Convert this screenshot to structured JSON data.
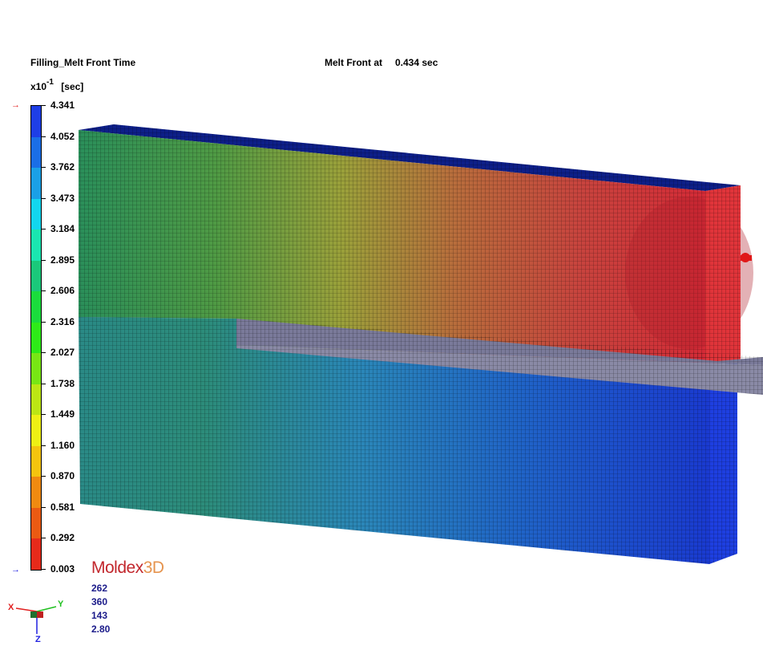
{
  "header": {
    "result_title": "Filling_Melt Front Time",
    "status_label": "Melt Front at",
    "status_value": "0.434 sec",
    "scale": "x10",
    "exponent": "-1",
    "unit": "[sec]"
  },
  "legend": {
    "ticks": [
      "4.341",
      "4.052",
      "3.762",
      "3.473",
      "3.184",
      "2.895",
      "2.606",
      "2.316",
      "2.027",
      "1.738",
      "1.449",
      "1.160",
      "0.870",
      "0.581",
      "0.292",
      "0.003"
    ],
    "colors": [
      "#1e3ee6",
      "#1a6ee6",
      "#1aa0e6",
      "#12d6ee",
      "#1ae6b0",
      "#1ac87a",
      "#1adc3c",
      "#2eea18",
      "#78e614",
      "#bce614",
      "#eef014",
      "#f5c40e",
      "#f08a10",
      "#ea5a12",
      "#e62a1a"
    ]
  },
  "logo": {
    "brand": "Moldex",
    "suffix": "3D"
  },
  "view": {
    "values": [
      "262",
      "360",
      "143",
      "2.80"
    ]
  },
  "triad": {
    "x": "X",
    "y": "Y",
    "z": "Z"
  }
}
